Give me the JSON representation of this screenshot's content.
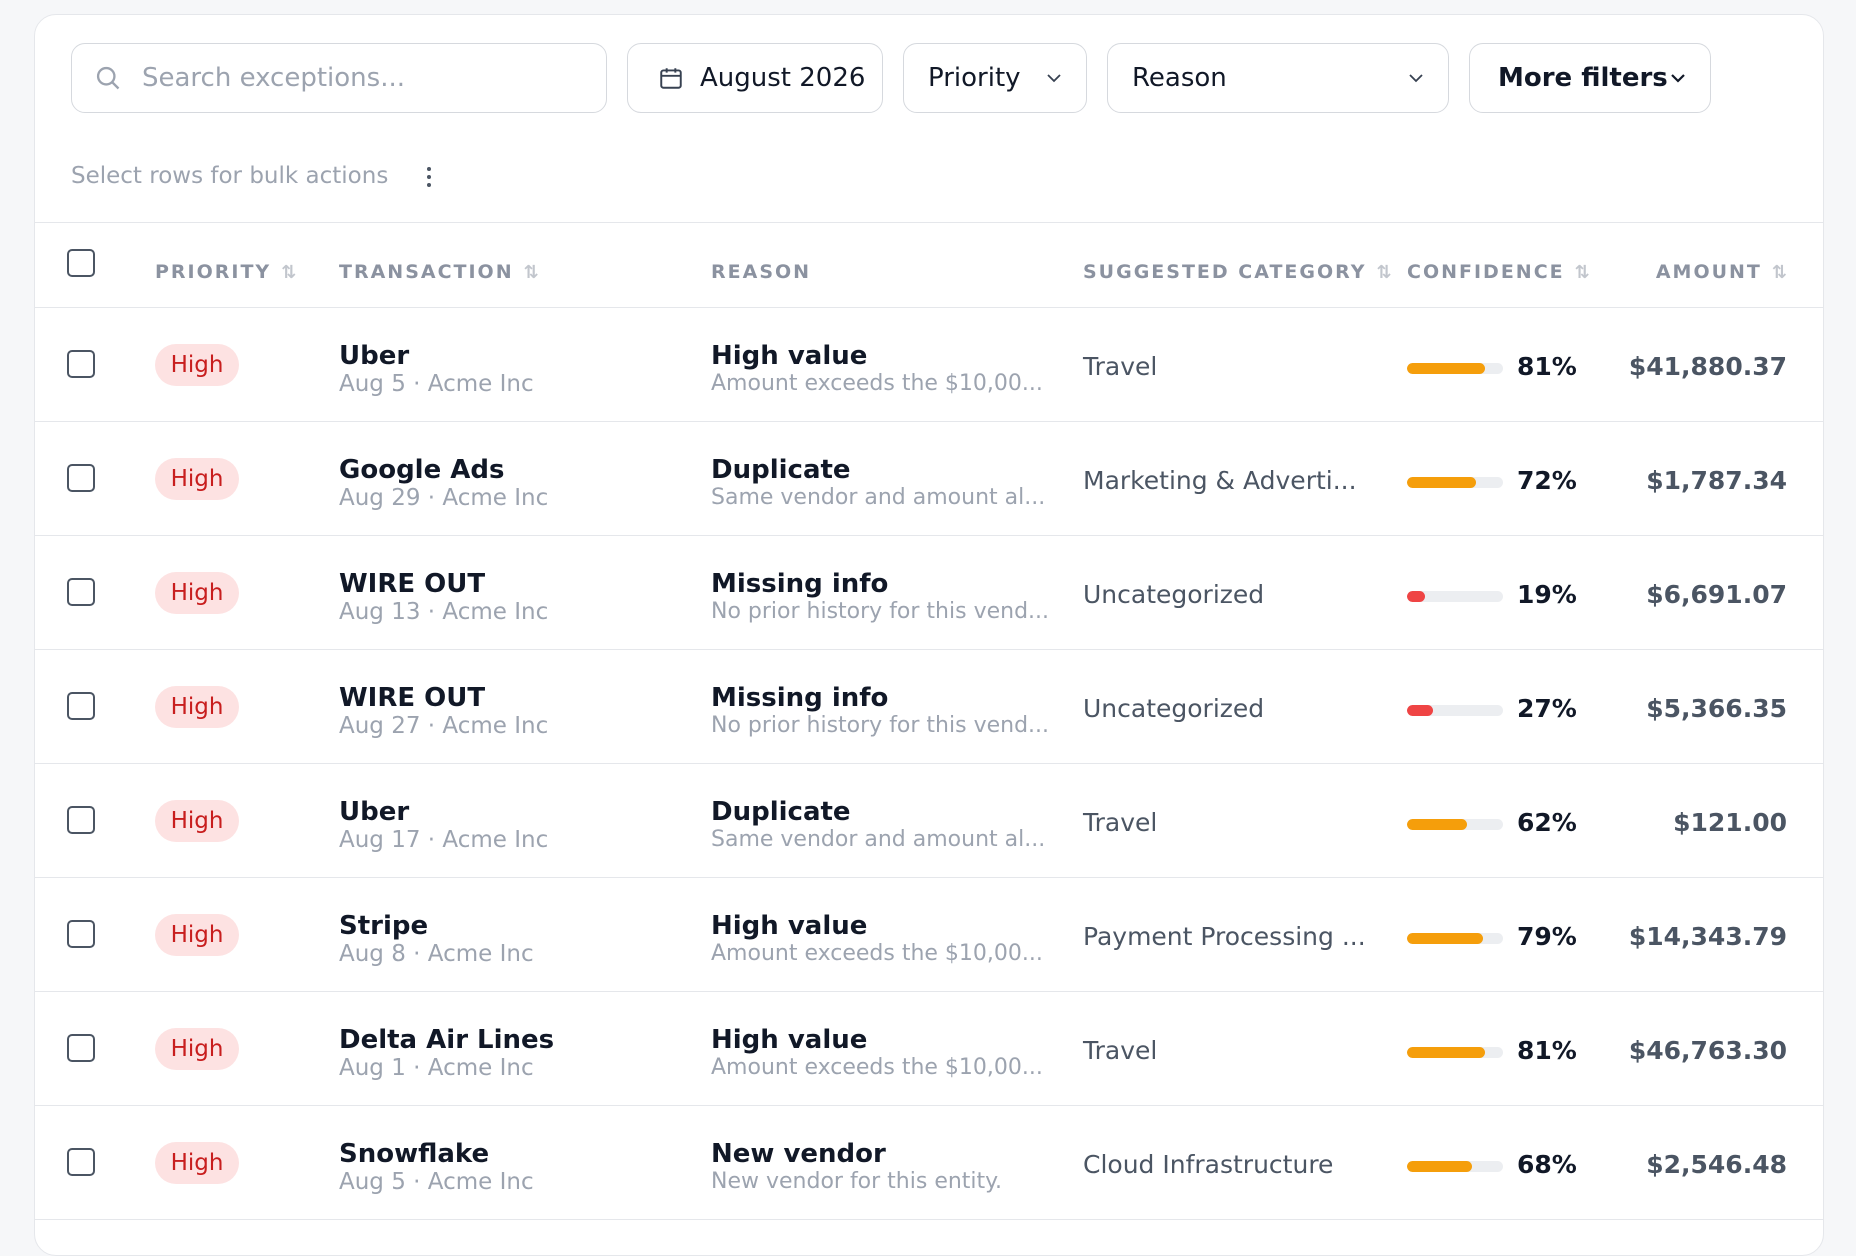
{
  "search": {
    "placeholder": "Search exceptions..."
  },
  "filters": {
    "date_label": "August 2026",
    "priority_label": "Priority",
    "reason_label": "Reason",
    "more_label": "More filters"
  },
  "bulk": {
    "hint": "Select rows for bulk actions"
  },
  "columns": {
    "priority": "PRIORITY",
    "transaction": "TRANSACTION",
    "reason": "REASON",
    "category": "SUGGESTED CATEGORY",
    "confidence": "CONFIDENCE",
    "amount": "AMOUNT"
  },
  "colors": {
    "high_conf": "#f59e0b",
    "low_conf": "#ef4444",
    "badge_bg": "#fde2e2",
    "badge_text": "#c81e1e"
  },
  "rows": [
    {
      "priority": "High",
      "vendor": "Uber",
      "meta": "Aug 5 · Acme Inc",
      "reason": "High value",
      "reason_detail": "Amount exceeds the $10,00...",
      "category": "Travel",
      "confidence": 81,
      "confidence_label": "81%",
      "amount": "$41,880.37"
    },
    {
      "priority": "High",
      "vendor": "Google Ads",
      "meta": "Aug 29 · Acme Inc",
      "reason": "Duplicate",
      "reason_detail": "Same vendor and amount al...",
      "category": "Marketing & Adverti...",
      "confidence": 72,
      "confidence_label": "72%",
      "amount": "$1,787.34"
    },
    {
      "priority": "High",
      "vendor": "WIRE OUT",
      "meta": "Aug 13 · Acme Inc",
      "reason": "Missing info",
      "reason_detail": "No prior history for this vend...",
      "category": "Uncategorized",
      "confidence": 19,
      "confidence_label": "19%",
      "amount": "$6,691.07"
    },
    {
      "priority": "High",
      "vendor": "WIRE OUT",
      "meta": "Aug 27 · Acme Inc",
      "reason": "Missing info",
      "reason_detail": "No prior history for this vend...",
      "category": "Uncategorized",
      "confidence": 27,
      "confidence_label": "27%",
      "amount": "$5,366.35"
    },
    {
      "priority": "High",
      "vendor": "Uber",
      "meta": "Aug 17 · Acme Inc",
      "reason": "Duplicate",
      "reason_detail": "Same vendor and amount al...",
      "category": "Travel",
      "confidence": 62,
      "confidence_label": "62%",
      "amount": "$121.00"
    },
    {
      "priority": "High",
      "vendor": "Stripe",
      "meta": "Aug 8 · Acme Inc",
      "reason": "High value",
      "reason_detail": "Amount exceeds the $10,00...",
      "category": "Payment Processing ...",
      "confidence": 79,
      "confidence_label": "79%",
      "amount": "$14,343.79"
    },
    {
      "priority": "High",
      "vendor": "Delta Air Lines",
      "meta": "Aug 1 · Acme Inc",
      "reason": "High value",
      "reason_detail": "Amount exceeds the $10,00...",
      "category": "Travel",
      "confidence": 81,
      "confidence_label": "81%",
      "amount": "$46,763.30"
    },
    {
      "priority": "High",
      "vendor": "Snowflake",
      "meta": "Aug 5 · Acme Inc",
      "reason": "New vendor",
      "reason_detail": "New vendor for this entity.",
      "category": "Cloud Infrastructure",
      "confidence": 68,
      "confidence_label": "68%",
      "amount": "$2,546.48"
    }
  ]
}
